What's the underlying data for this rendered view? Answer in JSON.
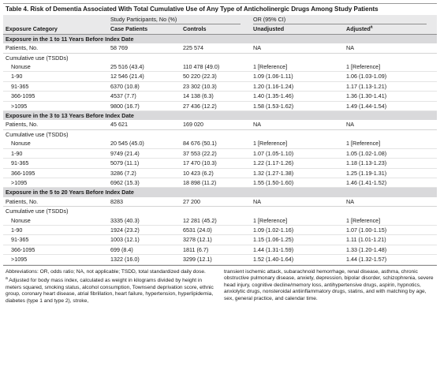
{
  "title": "Table 4. Risk of Dementia Associated With Total Cumulative Use of Any Type of Anticholinergic Drugs Among Study Patients",
  "headers": {
    "group_participants": "Study Participants, No (%)",
    "group_or": "OR (95% CI)",
    "exposure_category": "Exposure Category",
    "case_patients": "Case Patients",
    "controls": "Controls",
    "unadjusted": "Unadjusted",
    "adjusted": "Adjusted",
    "adjusted_mark": "a"
  },
  "sections": [
    {
      "title": "Exposure in the 1 to 11 Years Before Index Date",
      "patients": [
        "Patients, No.",
        "58 769",
        "225 574",
        "NA",
        "NA"
      ],
      "cumulative_label": "Cumulative use (TSDDs)",
      "rows": [
        [
          "Nonuse",
          "25 516 (43.4)",
          "110 478 (49.0)",
          "1 [Reference]",
          "1 [Reference]"
        ],
        [
          "1-90",
          "12 546 (21.4)",
          "50 220 (22.3)",
          "1.09 (1.06-1.11)",
          "1.06 (1.03-1.09)"
        ],
        [
          "91-365",
          "6370 (10.8)",
          "23 302 (10.3)",
          "1.20 (1.16-1.24)",
          "1.17 (1.13-1.21)"
        ],
        [
          "366-1095",
          "4537 (7.7)",
          "14 138 (6.3)",
          "1.40 (1.35-1.46)",
          "1.36 (1.30-1.41)"
        ],
        [
          ">1095",
          "9800 (16.7)",
          "27 436 (12.2)",
          "1.58 (1.53-1.62)",
          "1.49 (1.44-1.54)"
        ]
      ]
    },
    {
      "title": "Exposure in the 3 to 13 Years Before Index Date",
      "patients": [
        "Patients, No.",
        "45 621",
        "169 020",
        "NA",
        "NA"
      ],
      "cumulative_label": "Cumulative use (TSDDs)",
      "rows": [
        [
          "Nonuse",
          "20 545 (45.0)",
          "84 676 (50.1)",
          "1 [Reference]",
          "1 [Reference]"
        ],
        [
          "1-90",
          "9749 (21.4)",
          "37 553 (22.2)",
          "1.07 (1.05-1.10)",
          "1.05 (1.02-1.08)"
        ],
        [
          "91-365",
          "5079 (11.1)",
          "17 470 (10.3)",
          "1.22 (1.17-1.26)",
          "1.18 (1.13-1.23)"
        ],
        [
          "366-1095",
          "3286 (7.2)",
          "10 423 (6.2)",
          "1.32 (1.27-1.38)",
          "1.25 (1.19-1.31)"
        ],
        [
          ">1095",
          "6962 (15.3)",
          "18 898 (11.2)",
          "1.55 (1.50-1.60)",
          "1.46 (1.41-1.52)"
        ]
      ]
    },
    {
      "title": "Exposure in the 5 to 20 Years Before Index Date",
      "patients": [
        "Patients, No.",
        "8283",
        "27 200",
        "NA",
        "NA"
      ],
      "cumulative_label": "Cumulative use (TSDDs)",
      "rows": [
        [
          "Nonuse",
          "3335 (40.3)",
          "12 281 (45.2)",
          "1 [Reference]",
          "1 [Reference]"
        ],
        [
          "1-90",
          "1924 (23.2)",
          "6531 (24.0)",
          "1.09 (1.02-1.16)",
          "1.07 (1.00-1.15)"
        ],
        [
          "91-365",
          "1003 (12.1)",
          "3278 (12.1)",
          "1.15 (1.06-1.25)",
          "1.11 (1.01-1.21)"
        ],
        [
          "366-1095",
          "699 (8.4)",
          "1811 (6.7)",
          "1.44 (1.31-1.59)",
          "1.33 (1.20-1.48)"
        ],
        [
          ">1095",
          "1322 (16.0)",
          "3299 (12.1)",
          "1.52 (1.40-1.64)",
          "1.44 (1.32-1.57)"
        ]
      ]
    }
  ],
  "footnotes": {
    "abbreviations": "Abbreviations: OR, odds ratio; NA, not applicable; TSDD, total standardized daily dose.",
    "adjusted_note_start": "Adjusted for body mass index, calculated as weight in kilograms divided by height in meters squared, smoking status, alcohol consumption, Townsend deprivation score, ethnic group, coronary heart disease, atrial fibrillation, heart failure, hypertension, hyperlipidemia, diabetes (type 1 and type 2), stroke,",
    "adjusted_note_end": "transient ischemic attack, subarachnoid hemorrhage, renal disease, asthma, chronic obstructive pulmonary disease, anxiety, depression, bipolar disorder, schizophrenia, severe head injury, cognitive decline/memory loss, antihypertensive drugs, aspirin, hypnotics, anxiolytic drugs, nonsteroidal antiinflammatory drugs, statins, and with matching by age, sex, general practice, and calendar time."
  }
}
